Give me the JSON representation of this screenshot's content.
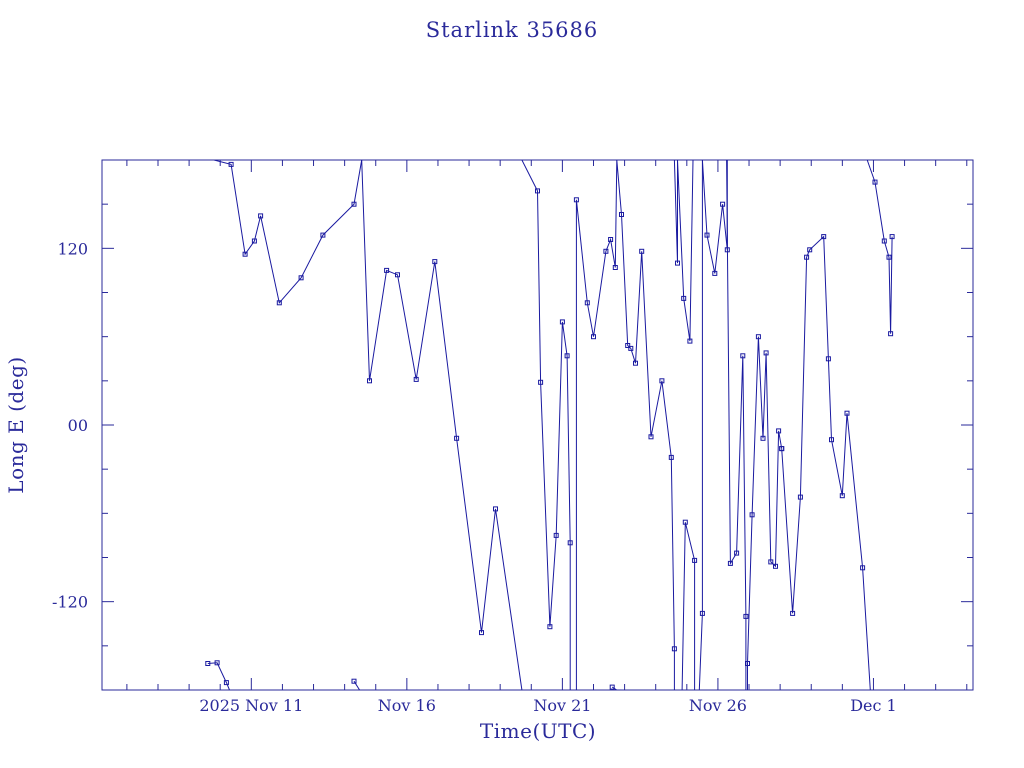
{
  "chart_data": {
    "type": "line",
    "title": "Starlink 35686",
    "xlabel": "Time(UTC)",
    "ylabel": "Long E (deg)",
    "x_unit": "day of November 2025 (UTC)",
    "xlim": [
      6.2,
      34.2
    ],
    "ylim": [
      -180,
      180
    ],
    "x_tick_labels": [
      {
        "x": 11,
        "label": "2025 Nov 11"
      },
      {
        "x": 16,
        "label": "Nov 16"
      },
      {
        "x": 21,
        "label": "Nov 21"
      },
      {
        "x": 26,
        "label": "Nov 26"
      },
      {
        "x": 31,
        "label": "Dec  1"
      }
    ],
    "y_tick_labels": [
      {
        "y": 120,
        "label": "120"
      },
      {
        "y": 0,
        "label": "00"
      },
      {
        "y": -120,
        "label": "-120"
      }
    ],
    "grid": false,
    "colors": {
      "line": "#1a1aa0",
      "text": "#2a2a9a",
      "frame": "#2a2a9a"
    },
    "series": [
      {
        "x": [
          9.6,
          9.9,
          10.2,
          10.3
        ],
        "y": [
          -162,
          -161.5,
          -175,
          -180
        ]
      },
      {
        "x": [
          9.8,
          10.35,
          10.8,
          11.1,
          11.3,
          11.9,
          12.6,
          13.3,
          14.3,
          14.55
        ],
        "y": [
          180,
          177,
          116,
          125,
          142,
          83,
          100,
          129,
          150,
          180
        ]
      },
      {
        "x": [
          14.48,
          14.3
        ],
        "y": [
          -180,
          -174
        ]
      },
      {
        "x": [
          14.55,
          14.8,
          15.35,
          15.7,
          16.3,
          16.9,
          17.6,
          18.4,
          18.85,
          19.7
        ],
        "y": [
          180,
          30,
          105,
          102,
          31,
          111,
          -9,
          -141,
          -57,
          -180
        ]
      },
      {
        "x": [
          19.7,
          20.2,
          20.3,
          20.6,
          20.8,
          21.0,
          21.15,
          21.25,
          21.25
        ],
        "y": [
          180,
          159,
          29,
          -137,
          -75,
          70,
          47,
          -80,
          -180
        ]
      },
      {
        "x": [
          21.45,
          21.45,
          21.8,
          22.0,
          22.4,
          22.55,
          22.7,
          22.75,
          22.9,
          23.1,
          23.2,
          23.35,
          23.55,
          23.85,
          24.2,
          24.5,
          24.6,
          24.6
        ],
        "y": [
          -180,
          153,
          83,
          60,
          118,
          126,
          107,
          180,
          143,
          54,
          52,
          42,
          118,
          -8,
          30,
          -22,
          -152,
          -180
        ]
      },
      {
        "x": [
          22.6,
          22.75,
          22.9
        ],
        "y": [
          -178,
          -180,
          -180
        ]
      },
      {
        "x": [
          24.6,
          24.7,
          24.7,
          24.9,
          25.1,
          25.2
        ],
        "y": [
          180,
          110,
          180,
          86,
          57,
          180
        ]
      },
      {
        "x": [
          24.85,
          24.95,
          25.25,
          25.25
        ],
        "y": [
          -180,
          -66,
          -92,
          -180
        ]
      },
      {
        "x": [
          25.4,
          25.5,
          25.5
        ],
        "y": [
          -180,
          -128,
          180
        ]
      },
      {
        "x": [
          25.5,
          25.65,
          25.9,
          26.15,
          26.3,
          26.3
        ],
        "y": [
          180,
          129,
          103,
          150,
          119,
          180
        ]
      },
      {
        "x": [
          26.28,
          26.4,
          26.6,
          26.8,
          26.9,
          26.9
        ],
        "y": [
          180,
          -94,
          -87,
          47,
          -130,
          -180
        ]
      },
      {
        "x": [
          26.95,
          26.95,
          27.1,
          27.3,
          27.45,
          27.55,
          27.7,
          27.85,
          27.95,
          28.05
        ],
        "y": [
          -180,
          -162,
          -61,
          60,
          -9,
          49,
          -93,
          -96,
          -4,
          -16
        ]
      },
      {
        "x": [
          28.05,
          28.4,
          28.65,
          28.85,
          28.95,
          29.4,
          29.55,
          29.65,
          30.0,
          30.15,
          30.65,
          30.9
        ],
        "y": [
          -16,
          -128,
          -49,
          114,
          119,
          128,
          45,
          -10,
          -48,
          8,
          -97,
          -180
        ]
      },
      {
        "x": [
          30.8,
          31.05,
          31.35,
          31.5,
          31.55,
          31.6
        ],
        "y": [
          180,
          165,
          125,
          114,
          62,
          128
        ]
      }
    ]
  }
}
